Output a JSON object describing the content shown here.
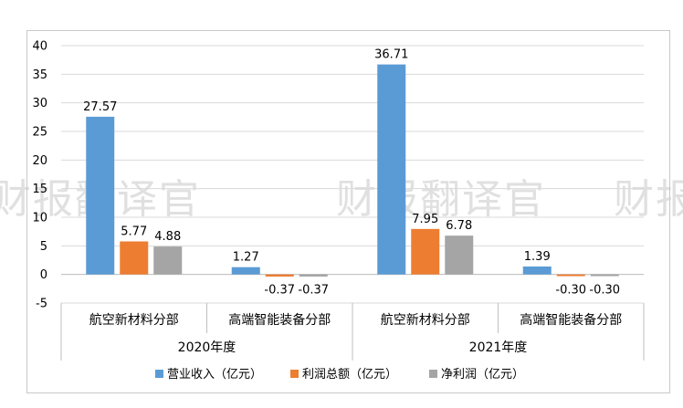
{
  "chart_data": {
    "type": "bar",
    "title": "",
    "xlabel": "",
    "ylabel": "",
    "ylim": [
      -5,
      40
    ],
    "yticks": [
      40,
      35,
      30,
      25,
      20,
      15,
      10,
      5,
      0,
      -5
    ],
    "grid": true,
    "legend_position": "bottom",
    "groups": [
      {
        "label": "2020年度",
        "categories": [
          "航空新材料分部",
          "高端智能装备分部"
        ]
      },
      {
        "label": "2021年度",
        "categories": [
          "航空新材料分部",
          "高端智能装备分部"
        ]
      }
    ],
    "series": [
      {
        "name": "营业收入（亿元）",
        "color": "#5b9bd5",
        "values": [
          27.57,
          1.27,
          36.71,
          1.39
        ],
        "labels": [
          "27.57",
          "1.27",
          "36.71",
          "1.39"
        ]
      },
      {
        "name": "利润总额（亿元）",
        "color": "#ed7d31",
        "values": [
          5.77,
          -0.37,
          7.95,
          -0.3
        ],
        "labels": [
          "5.77",
          "-0.37",
          "7.95",
          "-0.30"
        ]
      },
      {
        "name": "净利润（亿元）",
        "color": "#a5a5a5",
        "values": [
          4.88,
          -0.37,
          6.78,
          -0.3
        ],
        "labels": [
          "4.88",
          "-0.37",
          "6.78",
          "-0.30"
        ]
      }
    ]
  },
  "watermark": "财报翻译官"
}
